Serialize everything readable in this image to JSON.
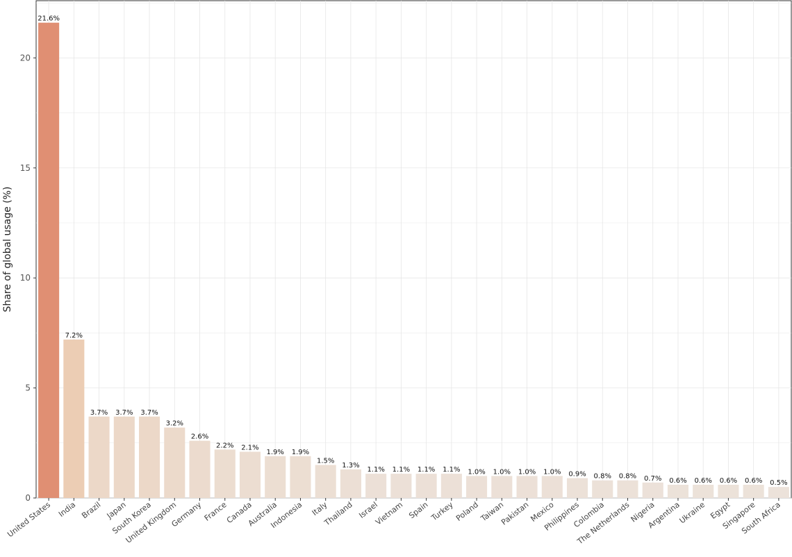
{
  "chart_data": {
    "type": "bar",
    "ylabel": "Share of global usage (%)",
    "xlabel": "",
    "ylim": [
      0,
      22.6
    ],
    "yticks": [
      0,
      5,
      10,
      15,
      20
    ],
    "grid": true,
    "categories": [
      "United States",
      "India",
      "Brazil",
      "Japan",
      "South Korea",
      "United Kingdom",
      "Germany",
      "France",
      "Canada",
      "Australia",
      "Indonesia",
      "Italy",
      "Thailand",
      "Israel",
      "Vietnam",
      "Spain",
      "Turkey",
      "Poland",
      "Taiwan",
      "Pakistan",
      "Mexico",
      "Philippines",
      "Colombia",
      "The Netherlands",
      "Nigeria",
      "Argentina",
      "Ukraine",
      "Egypt",
      "Singapore",
      "South Africa"
    ],
    "values": [
      21.6,
      7.2,
      3.7,
      3.7,
      3.7,
      3.2,
      2.6,
      2.2,
      2.1,
      1.9,
      1.9,
      1.5,
      1.3,
      1.1,
      1.1,
      1.1,
      1.1,
      1.0,
      1.0,
      1.0,
      1.0,
      0.9,
      0.8,
      0.8,
      0.7,
      0.6,
      0.6,
      0.6,
      0.6,
      0.5
    ],
    "data_labels": [
      "21.6%",
      "7.2%",
      "3.7%",
      "3.7%",
      "3.7%",
      "3.2%",
      "2.6%",
      "2.2%",
      "2.1%",
      "1.9%",
      "1.9%",
      "1.5%",
      "1.3%",
      "1.1%",
      "1.1%",
      "1.1%",
      "1.1%",
      "1.0%",
      "1.0%",
      "1.0%",
      "1.0%",
      "0.9%",
      "0.8%",
      "0.8%",
      "0.7%",
      "0.6%",
      "0.6%",
      "0.6%",
      "0.6%",
      "0.5%"
    ],
    "colors": {
      "high": "#e08f73",
      "mid": "#eccdb4",
      "low": "#ece2da",
      "grid": "#e6e6e6",
      "axis": "#333333"
    }
  }
}
